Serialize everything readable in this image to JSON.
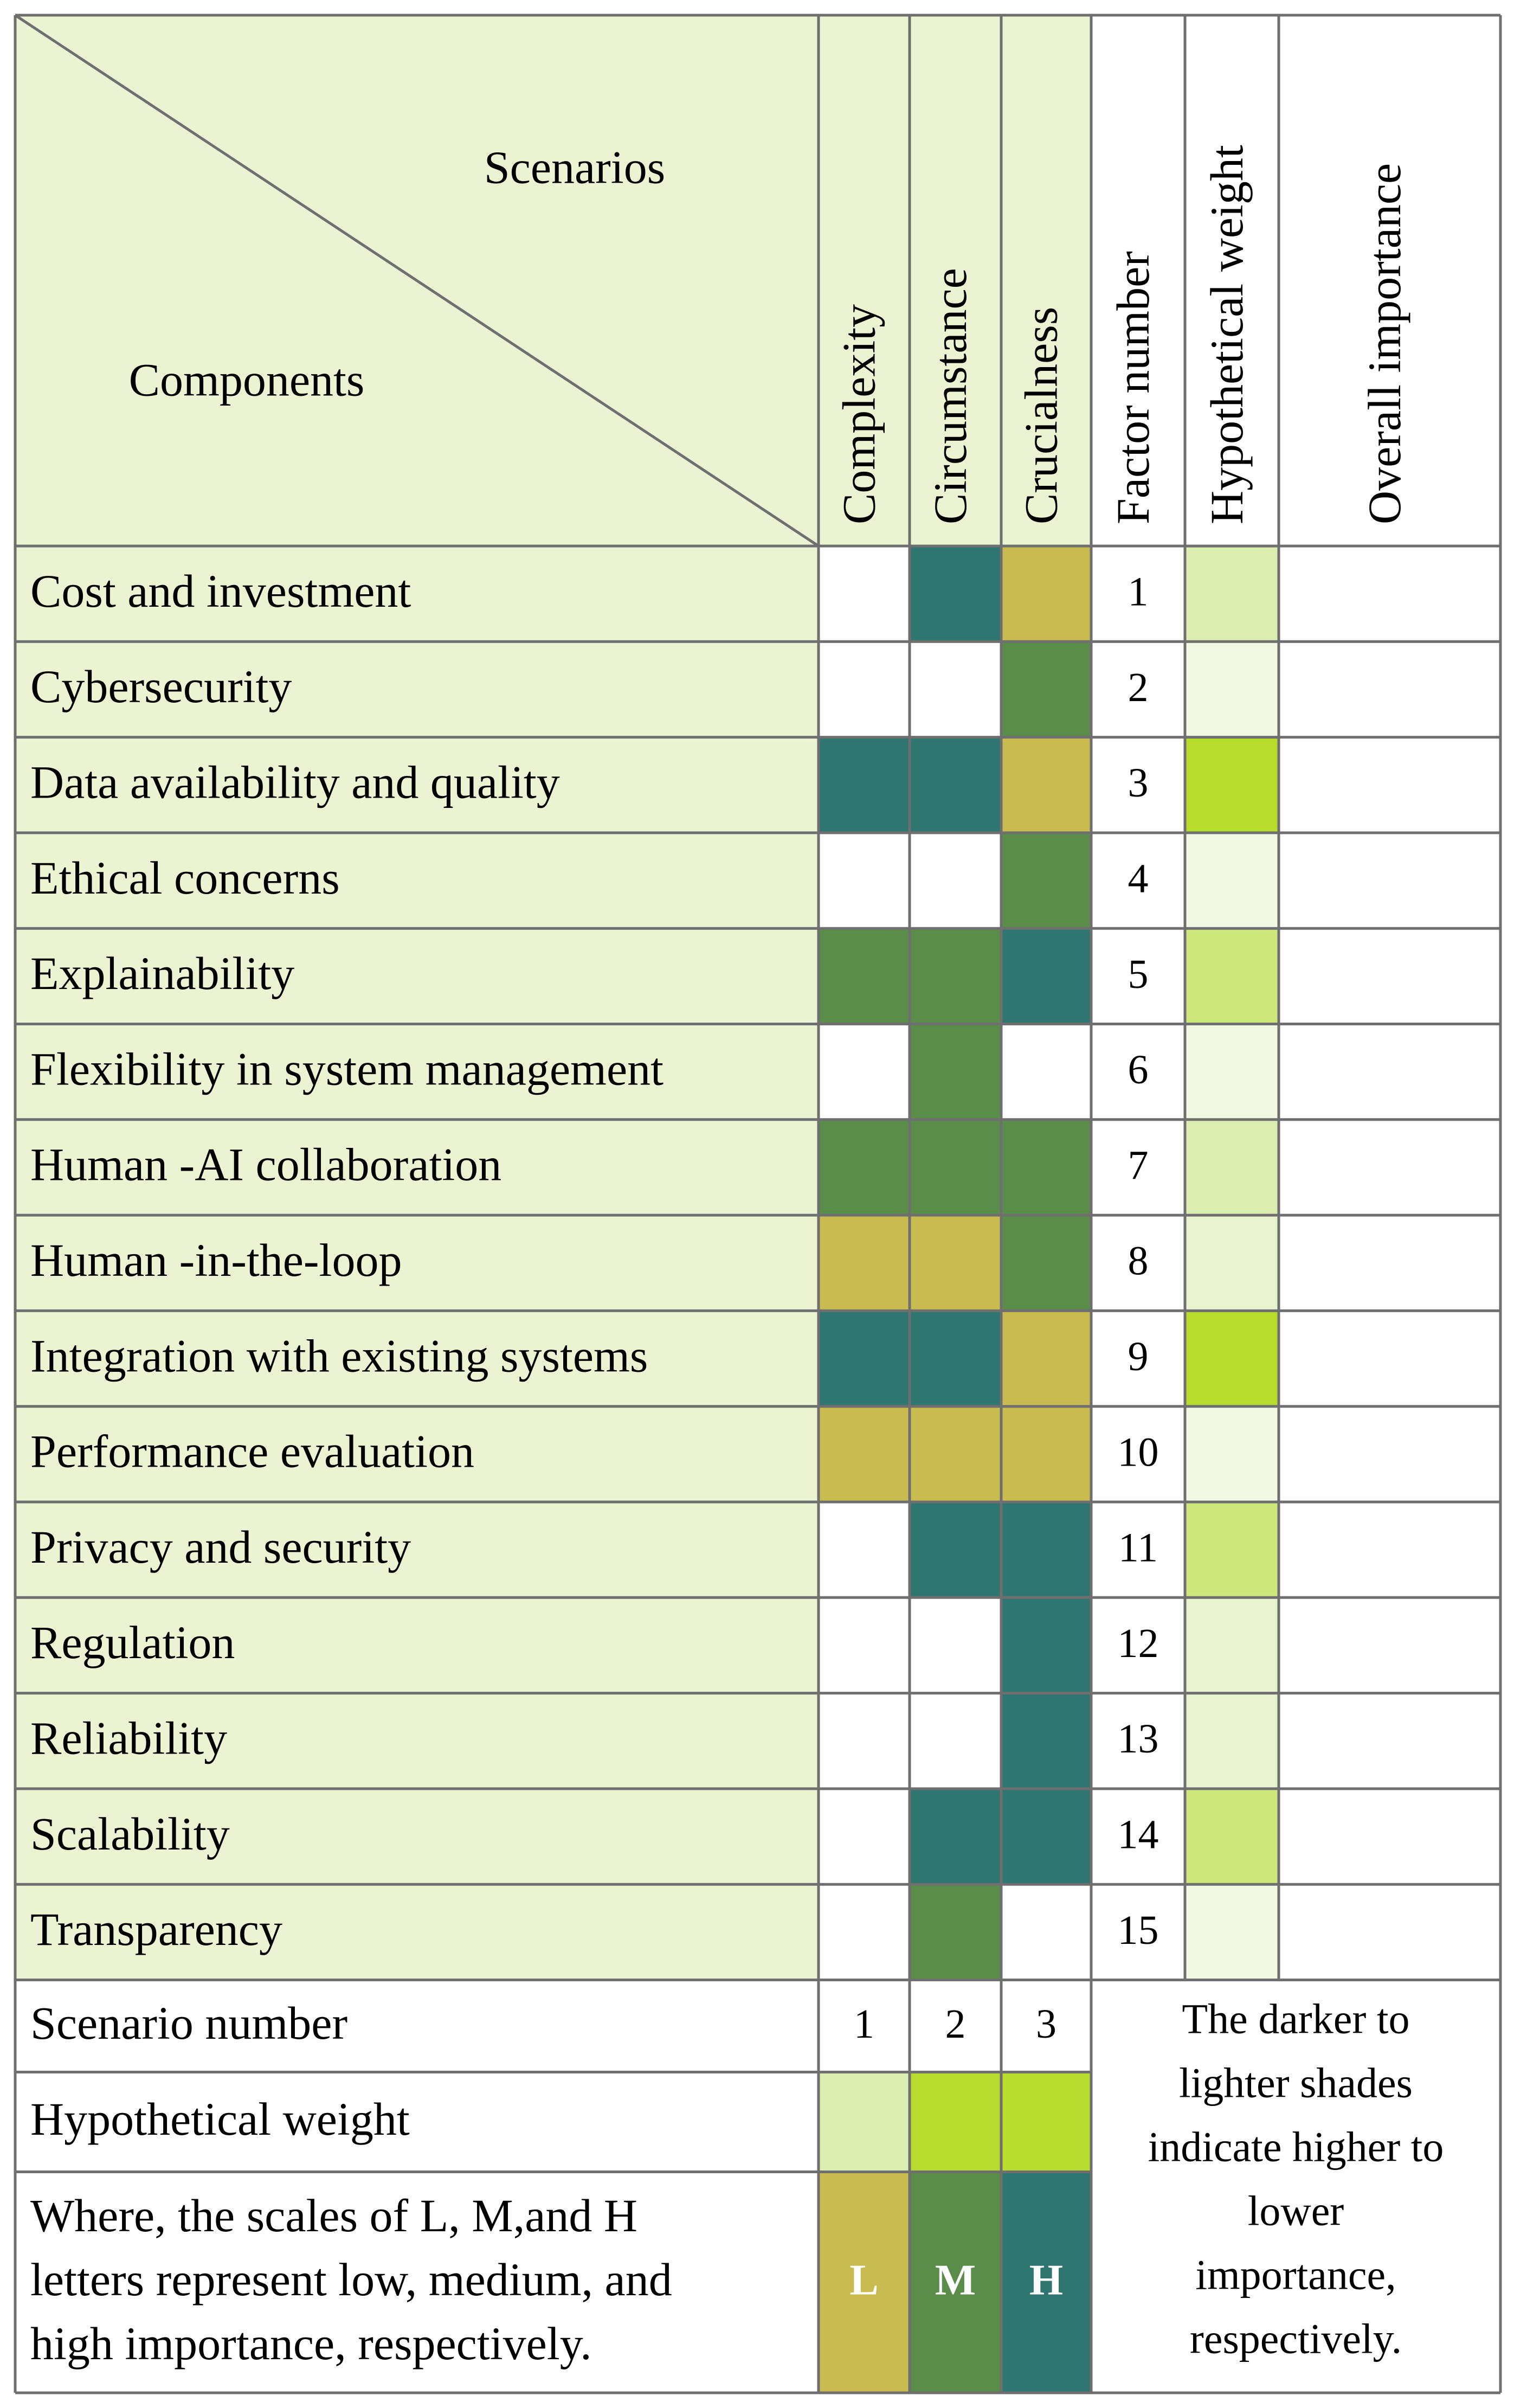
{
  "header": {
    "scenarios_label": "Scenarios",
    "components_label": "Components",
    "columns": [
      "Complexity",
      "Circumstance",
      "Crucialness",
      "Factor number",
      "Hypothetical weight",
      "Overall importance"
    ]
  },
  "colors": {
    "L": "#c8bb4f",
    "M": "#5a8c4a",
    "H": "#2f7570",
    "none": "#ffffff",
    "label_bg": "#ebf3d2",
    "grid": "#6f6f6f",
    "weight_shades": [
      "#f3f8e4",
      "#e9f3cf",
      "#dcedb1",
      "#cde77d",
      "#b8dc2d"
    ]
  },
  "rows": [
    {
      "component": "Cost and investment",
      "levels": [
        "",
        "H",
        "L"
      ],
      "factor": "1",
      "weight": 2
    },
    {
      "component": "Cybersecurity",
      "levels": [
        "",
        "",
        "M"
      ],
      "factor": "2",
      "weight": 0
    },
    {
      "component": "Data availability and quality",
      "levels": [
        "H",
        "H",
        "L"
      ],
      "factor": "3",
      "weight": 4
    },
    {
      "component": "Ethical concerns",
      "levels": [
        "",
        "",
        "M"
      ],
      "factor": "4",
      "weight": 0
    },
    {
      "component": "Explainability",
      "levels": [
        "M",
        "M",
        "H"
      ],
      "factor": "5",
      "weight": 3
    },
    {
      "component": "Flexibility in system management",
      "levels": [
        "",
        "M",
        ""
      ],
      "factor": "6",
      "weight": 0
    },
    {
      "component": "Human -AI collaboration",
      "levels": [
        "M",
        "M",
        "M"
      ],
      "factor": "7",
      "weight": 2
    },
    {
      "component": "Human -in-the-loop",
      "levels": [
        "L",
        "L",
        "M"
      ],
      "factor": "8",
      "weight": 1
    },
    {
      "component": "Integration with existing systems",
      "levels": [
        "H",
        "H",
        "L"
      ],
      "factor": "9",
      "weight": 4
    },
    {
      "component": "Performance evaluation",
      "levels": [
        "L",
        "L",
        "L"
      ],
      "factor": "10",
      "weight": 0
    },
    {
      "component": "Privacy and security",
      "levels": [
        "",
        "H",
        "H"
      ],
      "factor": "11",
      "weight": 3
    },
    {
      "component": "Regulation",
      "levels": [
        "",
        "",
        "H"
      ],
      "factor": "12",
      "weight": 1
    },
    {
      "component": "Reliability",
      "levels": [
        "",
        "",
        "H"
      ],
      "factor": "13",
      "weight": 1
    },
    {
      "component": "Scalability",
      "levels": [
        "",
        "H",
        "H"
      ],
      "factor": "14",
      "weight": 3
    },
    {
      "component": "Transparency",
      "levels": [
        "",
        "M",
        ""
      ],
      "factor": "15",
      "weight": 0
    }
  ],
  "footer": {
    "scenario_number_label": "Scenario number",
    "scenario_numbers": [
      "1",
      "2",
      "3"
    ],
    "hypothetical_weight_label": "Hypothetical weight",
    "scenario_weights": [
      2,
      4,
      4
    ],
    "scale_note_lines": [
      "Where, the scales of L, M,and H",
      "letters represent low, medium, and",
      "high importance, respectively."
    ],
    "legend_letters": [
      "L",
      "M",
      "H"
    ],
    "shade_note_lines": [
      "The darker to",
      "lighter shades",
      "indicate higher to",
      "lower",
      "importance,",
      "respectively."
    ]
  }
}
